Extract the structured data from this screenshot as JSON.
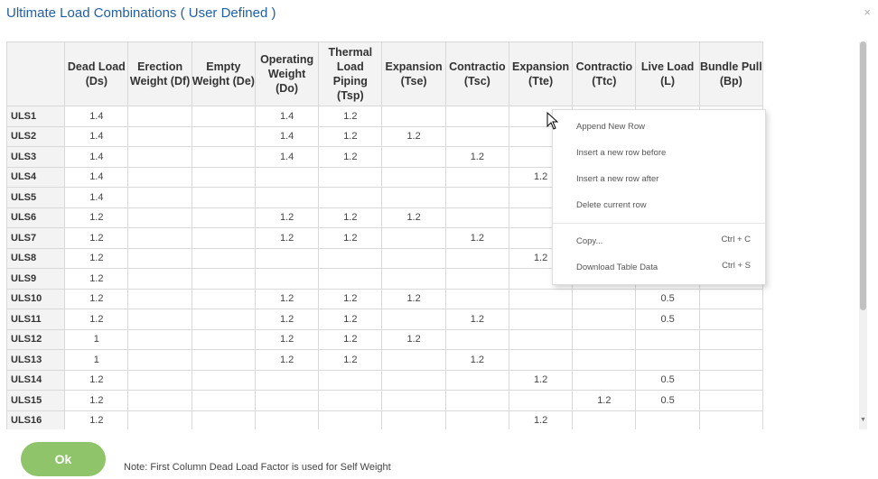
{
  "dialog": {
    "title": "Ultimate Load Combinations ( User Defined )",
    "close": "×"
  },
  "table": {
    "headers": [
      "Dead Load (Ds)",
      "Erection Weight (Df)",
      "Empty Weight (De)",
      "Operating Weight (Do)",
      "Thermal Load Piping (Tsp)",
      "Expansion (Tse)",
      "Contractio (Tsc)",
      "Expansion (Tte)",
      "Contractio (Ttc)",
      "Live Load (L)",
      "Bundle Pull (Bp)"
    ],
    "rows": [
      [
        "ULS1",
        "1.4",
        "",
        "",
        "1.4",
        "1.2",
        "",
        "",
        "",
        "",
        "",
        ""
      ],
      [
        "ULS2",
        "1.4",
        "",
        "",
        "1.4",
        "1.2",
        "1.2",
        "",
        "",
        "",
        "",
        ""
      ],
      [
        "ULS3",
        "1.4",
        "",
        "",
        "1.4",
        "1.2",
        "",
        "1.2",
        "",
        "",
        "",
        ""
      ],
      [
        "ULS4",
        "1.4",
        "",
        "",
        "",
        "",
        "",
        "",
        "1.2",
        "",
        "",
        ""
      ],
      [
        "ULS5",
        "1.4",
        "",
        "",
        "",
        "",
        "",
        "",
        "",
        "",
        "",
        ""
      ],
      [
        "ULS6",
        "1.2",
        "",
        "",
        "1.2",
        "1.2",
        "1.2",
        "",
        "",
        "",
        "",
        ""
      ],
      [
        "ULS7",
        "1.2",
        "",
        "",
        "1.2",
        "1.2",
        "",
        "1.2",
        "",
        "",
        "",
        ""
      ],
      [
        "ULS8",
        "1.2",
        "",
        "",
        "",
        "",
        "",
        "",
        "1.2",
        "",
        "",
        ""
      ],
      [
        "ULS9",
        "1.2",
        "",
        "",
        "",
        "",
        "",
        "",
        "",
        "",
        "",
        ""
      ],
      [
        "ULS10",
        "1.2",
        "",
        "",
        "1.2",
        "1.2",
        "1.2",
        "",
        "",
        "",
        "0.5",
        ""
      ],
      [
        "ULS11",
        "1.2",
        "",
        "",
        "1.2",
        "1.2",
        "",
        "1.2",
        "",
        "",
        "0.5",
        ""
      ],
      [
        "ULS12",
        "1",
        "",
        "",
        "1.2",
        "1.2",
        "1.2",
        "",
        "",
        "",
        "",
        ""
      ],
      [
        "ULS13",
        "1",
        "",
        "",
        "1.2",
        "1.2",
        "",
        "1.2",
        "",
        "",
        "",
        ""
      ],
      [
        "ULS14",
        "1.2",
        "",
        "",
        "",
        "",
        "",
        "",
        "1.2",
        "",
        "0.5",
        ""
      ],
      [
        "ULS15",
        "1.2",
        "",
        "",
        "",
        "",
        "",
        "",
        "",
        "1.2",
        "0.5",
        ""
      ],
      [
        "ULS16",
        "1.2",
        "",
        "",
        "",
        "",
        "",
        "",
        "1.2",
        "",
        "",
        ""
      ]
    ]
  },
  "context_menu": {
    "items": [
      {
        "label": "Append New Row",
        "shortcut": ""
      },
      {
        "label": "Insert a new row before",
        "shortcut": ""
      },
      {
        "label": "Insert a new row after",
        "shortcut": ""
      },
      {
        "label": "Delete current row",
        "shortcut": ""
      },
      {
        "label": "Copy...",
        "shortcut": "Ctrl + C"
      },
      {
        "label": "Download Table Data",
        "shortcut": "Ctrl + S"
      }
    ]
  },
  "footer": {
    "ok_label": "Ok",
    "note": "Note: First Column Dead Load Factor is used for Self Weight"
  },
  "colors": {
    "title": "#1f5fa6",
    "ok_button": "#8fc46a",
    "header_bg": "#f3f3f3",
    "grid_border": "#d9d9d9"
  }
}
